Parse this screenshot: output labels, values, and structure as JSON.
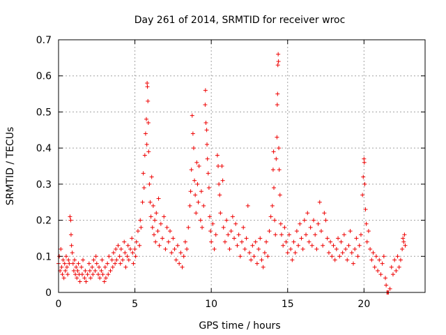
{
  "chart_data": {
    "type": "scatter",
    "title": "Day 261 of 2014, SRMTID for receiver wroc",
    "xlabel": "GPS time / hours",
    "ylabel": "SRMTID / TECUs",
    "xlim": [
      0,
      24
    ],
    "ylim": [
      0,
      0.7
    ],
    "x_ticks": [
      0,
      5,
      10,
      15,
      20
    ],
    "x_tick_labels": [
      "0",
      "5",
      "10",
      "15",
      "20"
    ],
    "y_ticks": [
      0,
      0.1,
      0.2,
      0.3,
      0.4,
      0.5,
      0.6,
      0.7
    ],
    "y_tick_labels": [
      "0",
      "0.1",
      "0.2",
      "0.3",
      "0.4",
      "0.5",
      "0.6",
      "0.7"
    ],
    "grid": true,
    "marker": "plus",
    "color": "#ee0000",
    "series": [
      {
        "name": "SRMTID",
        "points": [
          [
            0.0,
            0.08
          ],
          [
            0.05,
            0.1
          ],
          [
            0.1,
            0.06
          ],
          [
            0.15,
            0.12
          ],
          [
            0.2,
            0.07
          ],
          [
            0.25,
            0.05
          ],
          [
            0.3,
            0.09
          ],
          [
            0.35,
            0.04
          ],
          [
            0.4,
            0.08
          ],
          [
            0.45,
            0.06
          ],
          [
            0.5,
            0.1
          ],
          [
            0.55,
            0.07
          ],
          [
            0.6,
            0.05
          ],
          [
            0.65,
            0.09
          ],
          [
            0.7,
            0.08
          ],
          [
            0.75,
            0.21
          ],
          [
            0.8,
            0.2
          ],
          [
            0.82,
            0.16
          ],
          [
            0.85,
            0.13
          ],
          [
            0.9,
            0.11
          ],
          [
            0.95,
            0.08
          ],
          [
            1.0,
            0.06
          ],
          [
            1.05,
            0.09
          ],
          [
            1.1,
            0.05
          ],
          [
            1.15,
            0.07
          ],
          [
            1.2,
            0.04
          ],
          [
            1.25,
            0.06
          ],
          [
            1.3,
            0.08
          ],
          [
            1.35,
            0.05
          ],
          [
            1.4,
            0.03
          ],
          [
            1.5,
            0.07
          ],
          [
            1.55,
            0.05
          ],
          [
            1.6,
            0.09
          ],
          [
            1.7,
            0.04
          ],
          [
            1.75,
            0.06
          ],
          [
            1.8,
            0.03
          ],
          [
            1.9,
            0.05
          ],
          [
            2.0,
            0.08
          ],
          [
            2.05,
            0.06
          ],
          [
            2.1,
            0.04
          ],
          [
            2.2,
            0.07
          ],
          [
            2.25,
            0.05
          ],
          [
            2.3,
            0.09
          ],
          [
            2.4,
            0.06
          ],
          [
            2.45,
            0.1
          ],
          [
            2.5,
            0.08
          ],
          [
            2.6,
            0.05
          ],
          [
            2.65,
            0.07
          ],
          [
            2.7,
            0.04
          ],
          [
            2.8,
            0.06
          ],
          [
            2.85,
            0.09
          ],
          [
            2.9,
            0.05
          ],
          [
            3.0,
            0.03
          ],
          [
            3.05,
            0.07
          ],
          [
            3.1,
            0.04
          ],
          [
            3.2,
            0.08
          ],
          [
            3.25,
            0.05
          ],
          [
            3.3,
            0.1
          ],
          [
            3.4,
            0.06
          ],
          [
            3.5,
            0.09
          ],
          [
            3.55,
            0.07
          ],
          [
            3.6,
            0.11
          ],
          [
            3.7,
            0.08
          ],
          [
            3.75,
            0.12
          ],
          [
            3.8,
            0.09
          ],
          [
            3.9,
            0.13
          ],
          [
            4.0,
            0.1
          ],
          [
            4.05,
            0.08
          ],
          [
            4.1,
            0.12
          ],
          [
            4.2,
            0.09
          ],
          [
            4.3,
            0.14
          ],
          [
            4.35,
            0.11
          ],
          [
            4.4,
            0.07
          ],
          [
            4.5,
            0.1
          ],
          [
            4.55,
            0.13
          ],
          [
            4.6,
            0.09
          ],
          [
            4.7,
            0.12
          ],
          [
            4.8,
            0.15
          ],
          [
            4.85,
            0.11
          ],
          [
            4.9,
            0.08
          ],
          [
            5.0,
            0.12
          ],
          [
            5.05,
            0.1
          ],
          [
            5.1,
            0.14
          ],
          [
            5.2,
            0.17
          ],
          [
            5.3,
            0.13
          ],
          [
            5.35,
            0.2
          ],
          [
            5.4,
            0.18
          ],
          [
            5.5,
            0.25
          ],
          [
            5.55,
            0.33
          ],
          [
            5.6,
            0.29
          ],
          [
            5.65,
            0.38
          ],
          [
            5.7,
            0.44
          ],
          [
            5.75,
            0.48
          ],
          [
            5.78,
            0.41
          ],
          [
            5.8,
            0.58
          ],
          [
            5.82,
            0.57
          ],
          [
            5.85,
            0.53
          ],
          [
            5.88,
            0.47
          ],
          [
            5.9,
            0.39
          ],
          [
            5.95,
            0.3
          ],
          [
            6.0,
            0.25
          ],
          [
            6.05,
            0.21
          ],
          [
            6.1,
            0.32
          ],
          [
            6.15,
            0.18
          ],
          [
            6.2,
            0.24
          ],
          [
            6.25,
            0.16
          ],
          [
            6.3,
            0.2
          ],
          [
            6.35,
            0.14
          ],
          [
            6.4,
            0.22
          ],
          [
            6.5,
            0.17
          ],
          [
            6.55,
            0.26
          ],
          [
            6.6,
            0.13
          ],
          [
            6.7,
            0.19
          ],
          [
            6.8,
            0.15
          ],
          [
            6.9,
            0.21
          ],
          [
            7.0,
            0.12
          ],
          [
            7.1,
            0.18
          ],
          [
            7.2,
            0.14
          ],
          [
            7.3,
            0.17
          ],
          [
            7.4,
            0.11
          ],
          [
            7.5,
            0.15
          ],
          [
            7.6,
            0.12
          ],
          [
            7.7,
            0.09
          ],
          [
            7.8,
            0.13
          ],
          [
            7.9,
            0.08
          ],
          [
            8.0,
            0.11
          ],
          [
            8.1,
            0.07
          ],
          [
            8.2,
            0.1
          ],
          [
            8.3,
            0.14
          ],
          [
            8.4,
            0.12
          ],
          [
            8.5,
            0.18
          ],
          [
            8.6,
            0.24
          ],
          [
            8.65,
            0.28
          ],
          [
            8.7,
            0.34
          ],
          [
            8.75,
            0.49
          ],
          [
            8.8,
            0.44
          ],
          [
            8.85,
            0.4
          ],
          [
            8.9,
            0.31
          ],
          [
            8.95,
            0.27
          ],
          [
            9.0,
            0.22
          ],
          [
            9.05,
            0.36
          ],
          [
            9.1,
            0.3
          ],
          [
            9.15,
            0.25
          ],
          [
            9.2,
            0.35
          ],
          [
            9.3,
            0.2
          ],
          [
            9.35,
            0.28
          ],
          [
            9.4,
            0.18
          ],
          [
            9.5,
            0.24
          ],
          [
            9.6,
            0.52
          ],
          [
            9.62,
            0.56
          ],
          [
            9.65,
            0.47
          ],
          [
            9.7,
            0.45
          ],
          [
            9.72,
            0.41
          ],
          [
            9.75,
            0.37
          ],
          [
            9.8,
            0.33
          ],
          [
            9.85,
            0.29
          ],
          [
            9.9,
            0.21
          ],
          [
            9.95,
            0.17
          ],
          [
            10.0,
            0.14
          ],
          [
            10.1,
            0.19
          ],
          [
            10.2,
            0.12
          ],
          [
            10.3,
            0.16
          ],
          [
            10.4,
            0.38
          ],
          [
            10.45,
            0.35
          ],
          [
            10.5,
            0.3
          ],
          [
            10.55,
            0.27
          ],
          [
            10.6,
            0.22
          ],
          [
            10.7,
            0.35
          ],
          [
            10.75,
            0.31
          ],
          [
            10.8,
            0.18
          ],
          [
            10.9,
            0.14
          ],
          [
            11.0,
            0.2
          ],
          [
            11.1,
            0.16
          ],
          [
            11.2,
            0.12
          ],
          [
            11.3,
            0.17
          ],
          [
            11.4,
            0.21
          ],
          [
            11.5,
            0.15
          ],
          [
            11.6,
            0.19
          ],
          [
            11.7,
            0.13
          ],
          [
            11.8,
            0.16
          ],
          [
            11.9,
            0.1
          ],
          [
            12.0,
            0.14
          ],
          [
            12.1,
            0.18
          ],
          [
            12.2,
            0.12
          ],
          [
            12.3,
            0.15
          ],
          [
            12.4,
            0.24
          ],
          [
            12.5,
            0.11
          ],
          [
            12.6,
            0.09
          ],
          [
            12.7,
            0.13
          ],
          [
            12.8,
            0.1
          ],
          [
            12.9,
            0.14
          ],
          [
            13.0,
            0.08
          ],
          [
            13.1,
            0.12
          ],
          [
            13.2,
            0.15
          ],
          [
            13.3,
            0.09
          ],
          [
            13.4,
            0.07
          ],
          [
            13.5,
            0.11
          ],
          [
            13.6,
            0.14
          ],
          [
            13.7,
            0.1
          ],
          [
            13.8,
            0.17
          ],
          [
            13.9,
            0.21
          ],
          [
            14.0,
            0.24
          ],
          [
            14.05,
            0.34
          ],
          [
            14.08,
            0.39
          ],
          [
            14.1,
            0.29
          ],
          [
            14.15,
            0.2
          ],
          [
            14.2,
            0.16
          ],
          [
            14.25,
            0.37
          ],
          [
            14.3,
            0.43
          ],
          [
            14.32,
            0.52
          ],
          [
            14.34,
            0.55
          ],
          [
            14.36,
            0.63
          ],
          [
            14.38,
            0.66
          ],
          [
            14.4,
            0.64
          ],
          [
            14.42,
            0.4
          ],
          [
            14.45,
            0.34
          ],
          [
            14.5,
            0.27
          ],
          [
            14.55,
            0.19
          ],
          [
            14.6,
            0.16
          ],
          [
            14.7,
            0.13
          ],
          [
            14.8,
            0.18
          ],
          [
            14.9,
            0.14
          ],
          [
            15.0,
            0.11
          ],
          [
            15.1,
            0.16
          ],
          [
            15.2,
            0.12
          ],
          [
            15.3,
            0.09
          ],
          [
            15.4,
            0.14
          ],
          [
            15.5,
            0.11
          ],
          [
            15.6,
            0.17
          ],
          [
            15.7,
            0.13
          ],
          [
            15.8,
            0.19
          ],
          [
            15.9,
            0.15
          ],
          [
            16.0,
            0.12
          ],
          [
            16.1,
            0.2
          ],
          [
            16.2,
            0.16
          ],
          [
            16.3,
            0.22
          ],
          [
            16.4,
            0.14
          ],
          [
            16.5,
            0.18
          ],
          [
            16.6,
            0.13
          ],
          [
            16.7,
            0.2
          ],
          [
            16.8,
            0.16
          ],
          [
            16.9,
            0.12
          ],
          [
            17.0,
            0.19
          ],
          [
            17.1,
            0.25
          ],
          [
            17.2,
            0.17
          ],
          [
            17.3,
            0.13
          ],
          [
            17.4,
            0.22
          ],
          [
            17.5,
            0.2
          ],
          [
            17.6,
            0.15
          ],
          [
            17.7,
            0.11
          ],
          [
            17.8,
            0.14
          ],
          [
            17.9,
            0.1
          ],
          [
            18.0,
            0.13
          ],
          [
            18.1,
            0.09
          ],
          [
            18.2,
            0.12
          ],
          [
            18.3,
            0.15
          ],
          [
            18.4,
            0.1
          ],
          [
            18.5,
            0.14
          ],
          [
            18.6,
            0.11
          ],
          [
            18.7,
            0.16
          ],
          [
            18.8,
            0.12
          ],
          [
            18.9,
            0.09
          ],
          [
            19.0,
            0.13
          ],
          [
            19.1,
            0.17
          ],
          [
            19.2,
            0.11
          ],
          [
            19.3,
            0.08
          ],
          [
            19.4,
            0.12
          ],
          [
            19.5,
            0.15
          ],
          [
            19.6,
            0.1
          ],
          [
            19.7,
            0.13
          ],
          [
            19.8,
            0.16
          ],
          [
            19.9,
            0.27
          ],
          [
            19.95,
            0.32
          ],
          [
            20.0,
            0.37
          ],
          [
            20.02,
            0.36
          ],
          [
            20.05,
            0.3
          ],
          [
            20.1,
            0.23
          ],
          [
            20.15,
            0.19
          ],
          [
            20.2,
            0.14
          ],
          [
            20.3,
            0.17
          ],
          [
            20.4,
            0.12
          ],
          [
            20.5,
            0.09
          ],
          [
            20.6,
            0.11
          ],
          [
            20.7,
            0.07
          ],
          [
            20.8,
            0.1
          ],
          [
            20.9,
            0.06
          ],
          [
            21.0,
            0.09
          ],
          [
            21.1,
            0.05
          ],
          [
            21.2,
            0.08
          ],
          [
            21.3,
            0.1
          ],
          [
            21.4,
            0.04
          ],
          [
            21.45,
            0.02
          ],
          [
            21.5,
            0.0
          ],
          [
            21.55,
            0.0
          ],
          [
            21.6,
            0.0
          ],
          [
            21.7,
            0.01
          ],
          [
            21.8,
            0.07
          ],
          [
            21.9,
            0.05
          ],
          [
            22.0,
            0.09
          ],
          [
            22.1,
            0.06
          ],
          [
            22.2,
            0.1
          ],
          [
            22.3,
            0.07
          ],
          [
            22.4,
            0.09
          ],
          [
            22.5,
            0.12
          ],
          [
            22.55,
            0.15
          ],
          [
            22.6,
            0.14
          ],
          [
            22.65,
            0.16
          ],
          [
            22.7,
            0.13
          ]
        ]
      }
    ]
  }
}
